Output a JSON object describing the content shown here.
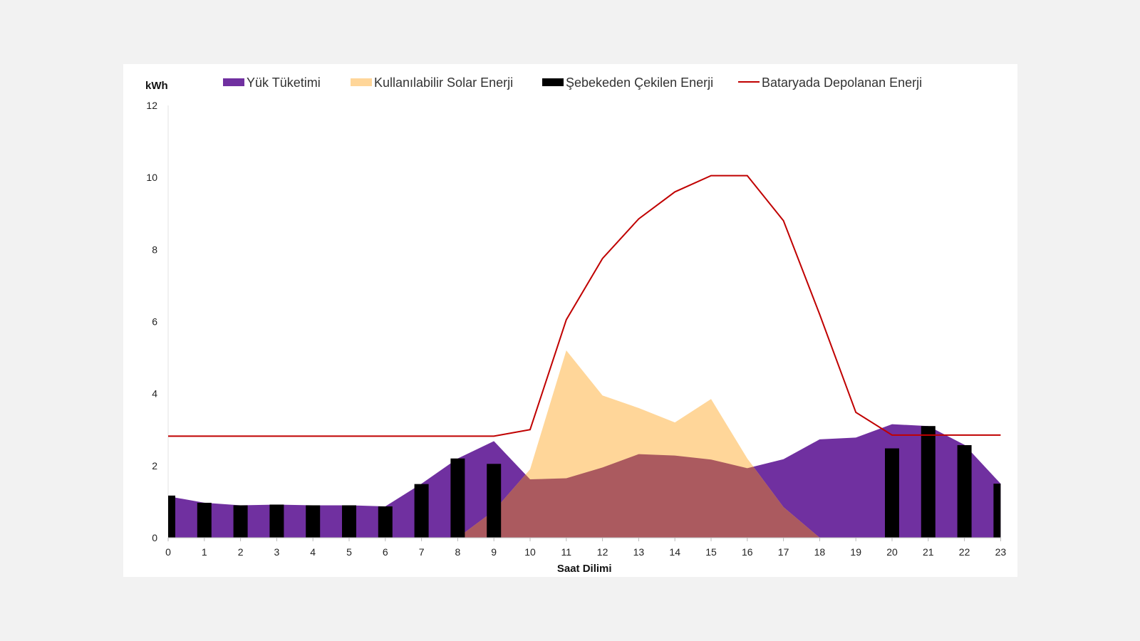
{
  "chart_data": {
    "type": "area",
    "title": "",
    "xlabel": "Saat Dilimi",
    "ylabel": "kWh",
    "ylim": [
      0,
      12
    ],
    "yticks": [
      0,
      2,
      4,
      6,
      8,
      10,
      12
    ],
    "categories": [
      "0",
      "1",
      "2",
      "3",
      "4",
      "5",
      "6",
      "7",
      "8",
      "9",
      "10",
      "11",
      "12",
      "13",
      "14",
      "15",
      "16",
      "17",
      "18",
      "19",
      "20",
      "21",
      "22",
      "23"
    ],
    "grid": false,
    "legend_position": "top",
    "series": [
      {
        "name": "Yük Tüketimi",
        "kind": "area",
        "color": "#7030a0",
        "values": [
          1.15,
          0.97,
          0.9,
          0.92,
          0.9,
          0.9,
          0.87,
          1.5,
          2.2,
          2.68,
          1.62,
          1.65,
          1.95,
          2.32,
          2.28,
          2.17,
          1.93,
          2.18,
          2.73,
          2.78,
          3.15,
          3.1,
          2.58,
          1.5
        ]
      },
      {
        "name": "Kullanılabilir Solar Enerji",
        "kind": "area",
        "color": "#ffd699",
        "values": [
          0,
          0,
          0,
          0,
          0,
          0,
          0,
          0,
          0,
          0.75,
          1.9,
          5.2,
          3.95,
          3.6,
          3.2,
          3.85,
          2.2,
          0.85,
          0,
          0,
          0,
          0,
          0,
          0
        ]
      },
      {
        "name": "Şebekeden Çekilen Enerji",
        "kind": "bar",
        "color": "#000000",
        "values": [
          1.17,
          0.97,
          0.9,
          0.92,
          0.9,
          0.9,
          0.87,
          1.49,
          2.2,
          2.05,
          0,
          0,
          0,
          0,
          0,
          0,
          0,
          0,
          0,
          0,
          2.48,
          3.1,
          2.57,
          1.5
        ]
      },
      {
        "name": "Bataryada Depolanan Enerji",
        "kind": "line",
        "color": "#c00000",
        "values": [
          2.82,
          2.82,
          2.82,
          2.82,
          2.82,
          2.82,
          2.82,
          2.82,
          2.82,
          2.82,
          3.0,
          6.05,
          7.75,
          8.85,
          9.6,
          10.05,
          10.05,
          8.8,
          6.2,
          3.48,
          2.85,
          2.85,
          2.85,
          2.85
        ]
      }
    ],
    "overlap_color": "#ab5a5f"
  }
}
